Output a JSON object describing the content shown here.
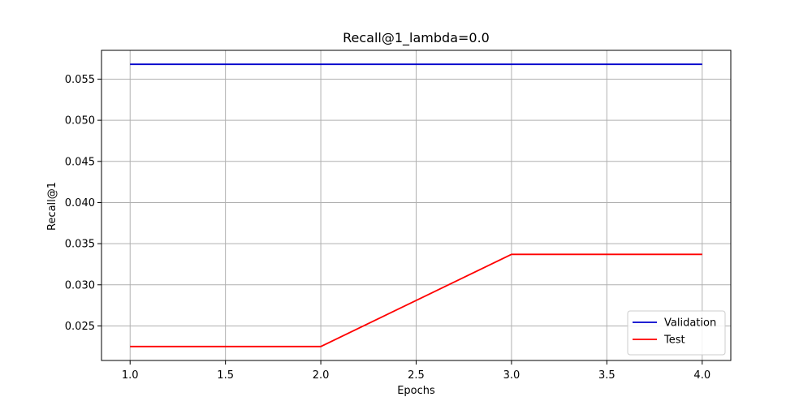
{
  "chart_data": {
    "type": "line",
    "title": "Recall@1_lambda=0.0",
    "xlabel": "Epochs",
    "ylabel": "Recall@1",
    "x": [
      1.0,
      2.0,
      3.0,
      4.0
    ],
    "xlim": [
      0.85,
      4.15
    ],
    "ylim": [
      0.0208,
      0.0585
    ],
    "xticks": [
      1.0,
      1.5,
      2.0,
      2.5,
      3.0,
      3.5,
      4.0
    ],
    "xtick_labels": [
      "1.0",
      "1.5",
      "2.0",
      "2.5",
      "3.0",
      "3.5",
      "4.0"
    ],
    "yticks": [
      0.025,
      0.03,
      0.035,
      0.04,
      0.045,
      0.05,
      0.055
    ],
    "ytick_labels": [
      "0.025",
      "0.030",
      "0.035",
      "0.040",
      "0.045",
      "0.050",
      "0.055"
    ],
    "grid": true,
    "legend_position": "bottom-right",
    "series": [
      {
        "name": "Validation",
        "color": "#0000cc",
        "values": [
          0.0568,
          0.0568,
          0.0568,
          0.0568
        ]
      },
      {
        "name": "Test",
        "color": "#ff0000",
        "values": [
          0.0225,
          0.0225,
          0.0337,
          0.0337
        ]
      }
    ]
  }
}
